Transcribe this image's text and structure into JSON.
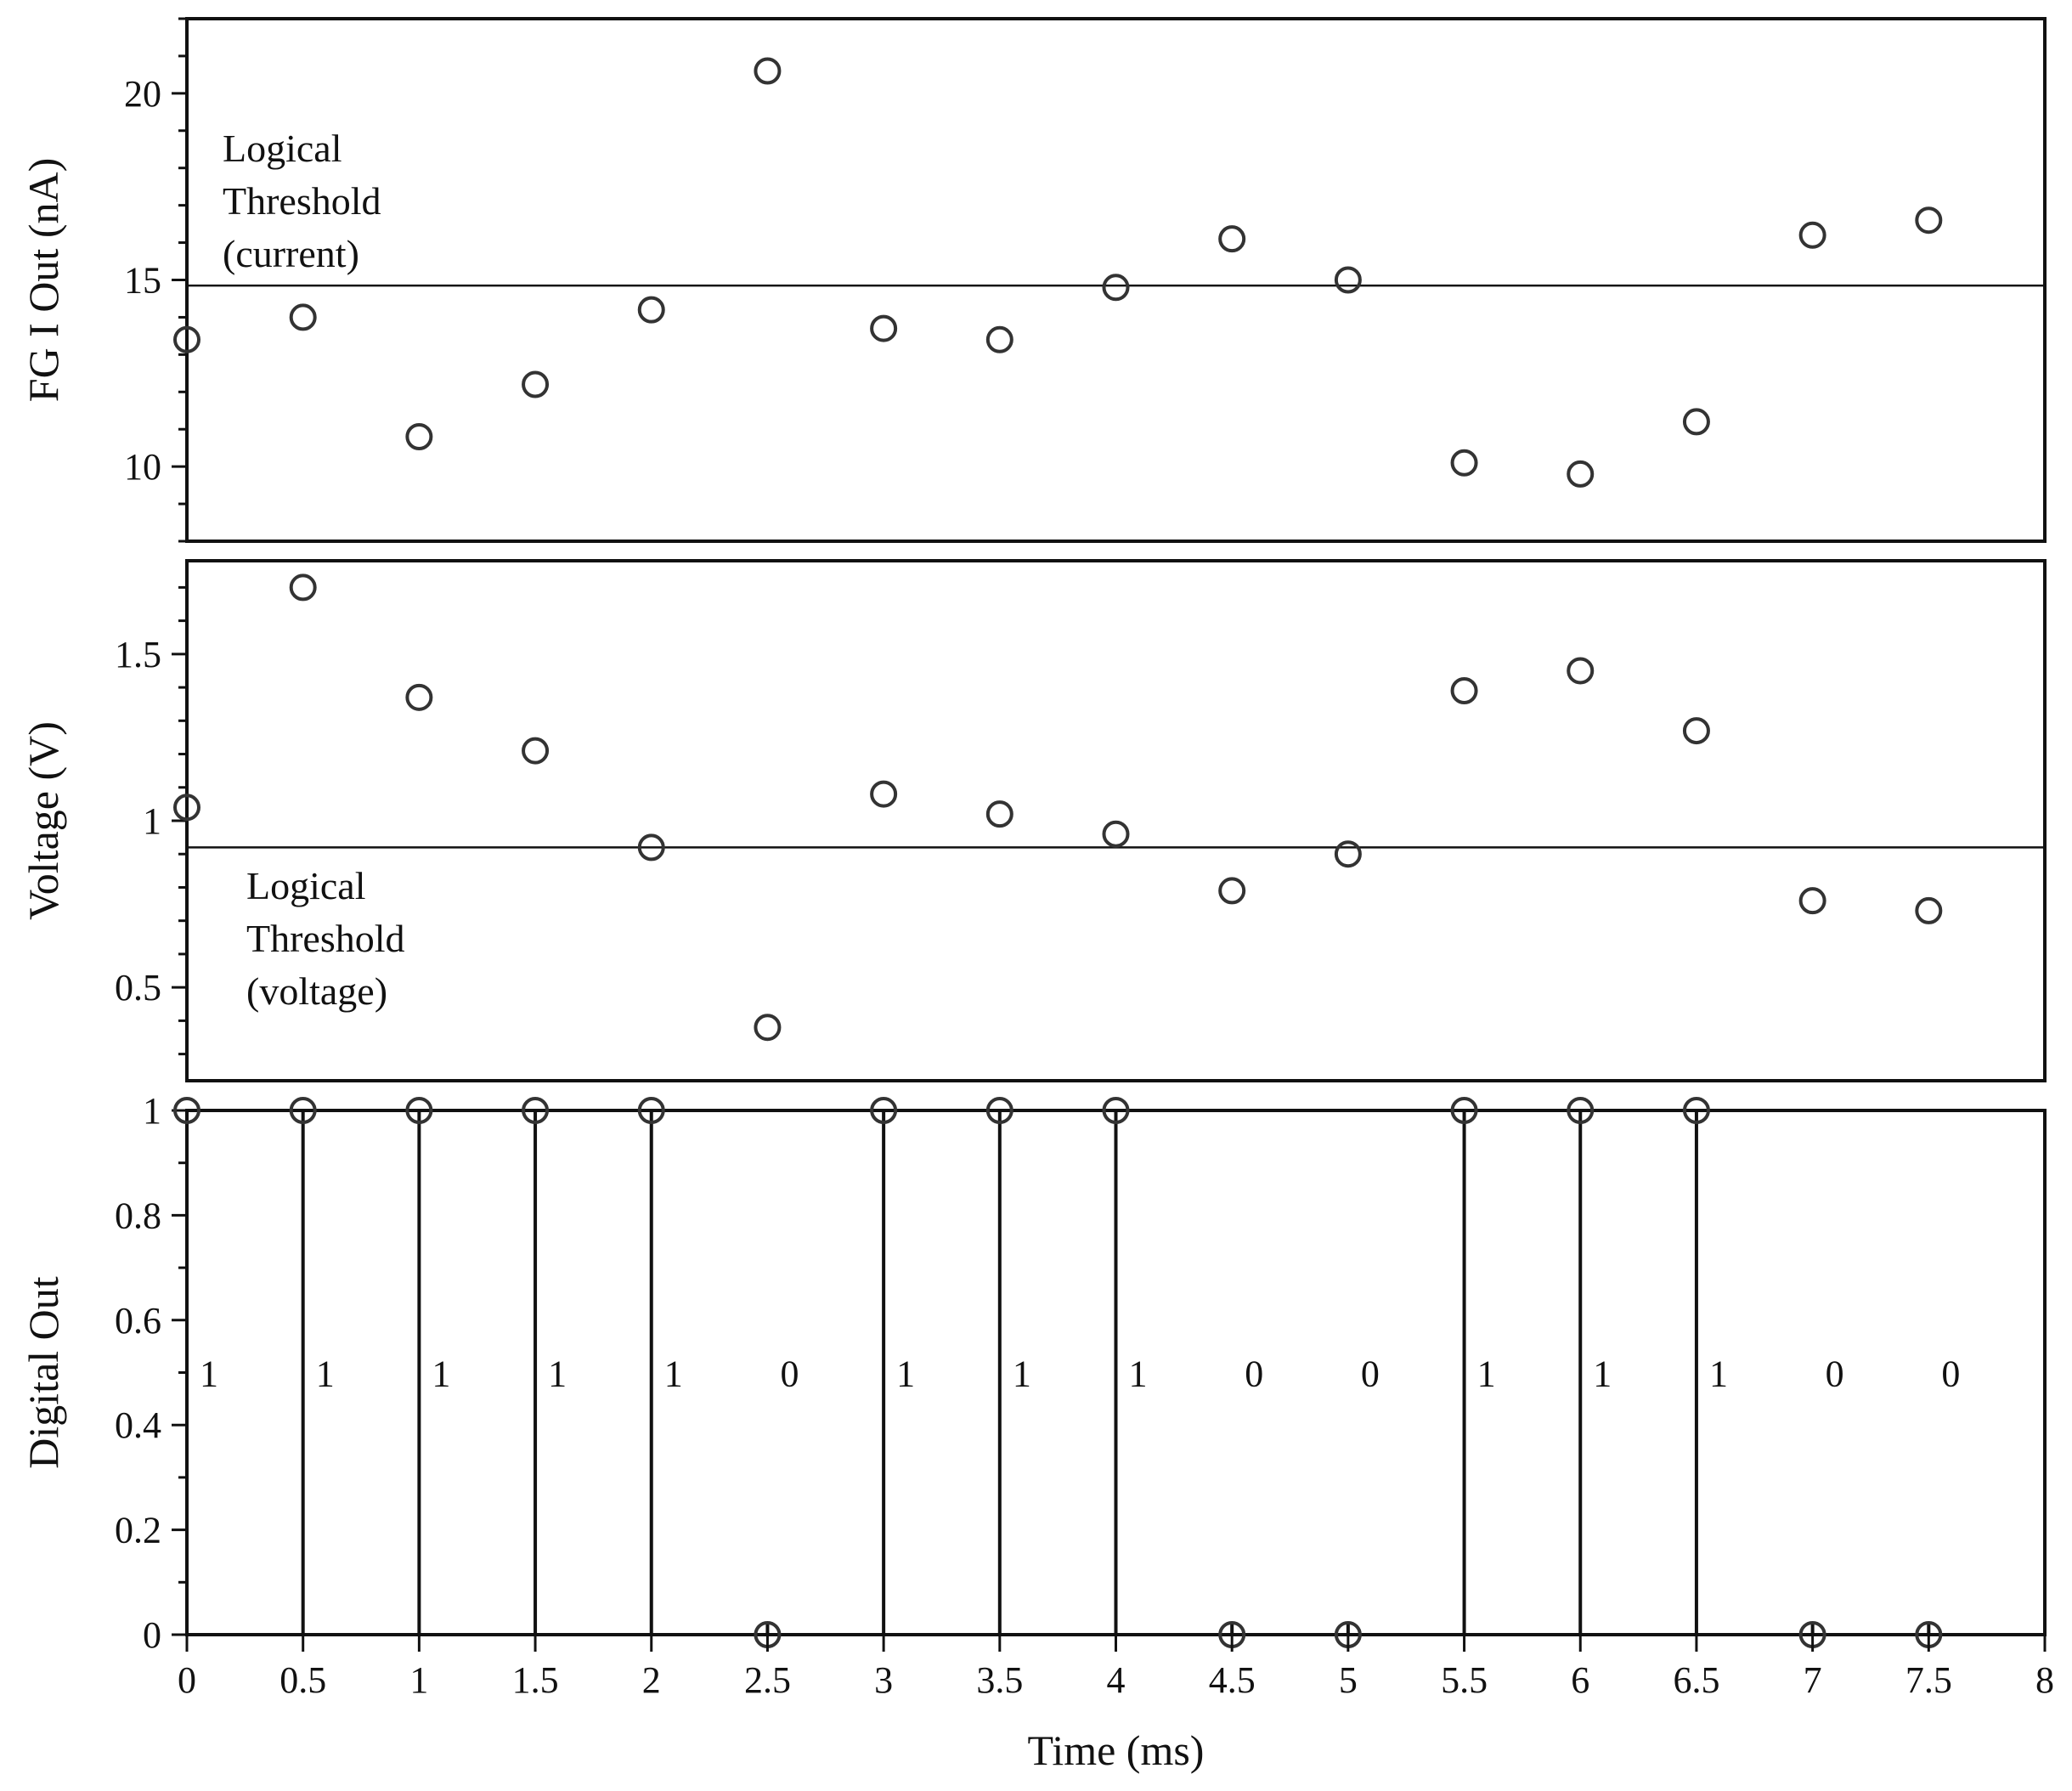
{
  "chart_data": [
    {
      "type": "scatter",
      "ylabel": "FG I Out (nA)",
      "ylim": [
        8,
        22
      ],
      "xlim": [
        0,
        8
      ],
      "yticks": [
        10,
        15,
        20
      ],
      "yticklabels": [
        "10",
        "15",
        "20"
      ],
      "threshold": 14.85,
      "annotation": [
        "Logical",
        "Threshold",
        "(current)"
      ],
      "grid": false,
      "x": [
        0,
        0.5,
        1,
        1.5,
        2,
        2.5,
        3,
        3.5,
        4,
        4.5,
        5,
        5.5,
        6,
        6.5,
        7,
        7.5
      ],
      "values": [
        13.4,
        14.0,
        10.8,
        12.2,
        14.2,
        20.6,
        13.7,
        13.4,
        14.8,
        16.1,
        15.0,
        10.1,
        9.8,
        11.2,
        16.2,
        16.6
      ]
    },
    {
      "type": "scatter",
      "ylabel": "Voltage (V)",
      "ylim": [
        0.22,
        1.78
      ],
      "xlim": [
        0,
        8
      ],
      "yticks": [
        0.5,
        1,
        1.5
      ],
      "yticklabels": [
        "0.5",
        "1",
        "1.5"
      ],
      "threshold": 0.92,
      "annotation": [
        "Logical",
        "Threshold",
        "(voltage)"
      ],
      "grid": false,
      "x": [
        0,
        0.5,
        1,
        1.5,
        2,
        2.5,
        3,
        3.5,
        4,
        4.5,
        5,
        5.5,
        6,
        6.5,
        7,
        7.5
      ],
      "values": [
        1.04,
        1.7,
        1.37,
        1.21,
        0.92,
        0.38,
        1.08,
        1.02,
        0.96,
        0.79,
        0.9,
        1.39,
        1.45,
        1.27,
        0.76,
        0.73
      ]
    },
    {
      "type": "stem",
      "ylabel": "Digital Out",
      "xlabel": "Time (ms)",
      "ylim": [
        0,
        1
      ],
      "xlim": [
        0,
        8
      ],
      "yticks": [
        0,
        0.2,
        0.4,
        0.6,
        0.8,
        1
      ],
      "yticklabels": [
        "0",
        "0.2",
        "0.4",
        "0.6",
        "0.8",
        "1"
      ],
      "xticks": [
        0,
        0.5,
        1,
        1.5,
        2,
        2.5,
        3,
        3.5,
        4,
        4.5,
        5,
        5.5,
        6,
        6.5,
        7,
        7.5,
        8
      ],
      "xticklabels": [
        "0",
        "0.5",
        "1",
        "1.5",
        "2",
        "2.5",
        "3",
        "3.5",
        "4",
        "4.5",
        "5",
        "5.5",
        "6",
        "6.5",
        "7",
        "7.5",
        "8"
      ],
      "grid": false,
      "x": [
        0,
        0.5,
        1,
        1.5,
        2,
        2.5,
        3,
        3.5,
        4,
        4.5,
        5,
        5.5,
        6,
        6.5,
        7,
        7.5
      ],
      "values": [
        1,
        1,
        1,
        1,
        1,
        0,
        1,
        1,
        1,
        0,
        0,
        1,
        1,
        1,
        0,
        0
      ],
      "bit_labels": [
        "1",
        "1",
        "1",
        "1",
        "1",
        "0",
        "1",
        "1",
        "1",
        "0",
        "0",
        "1",
        "1",
        "1",
        "0",
        "0"
      ]
    }
  ]
}
